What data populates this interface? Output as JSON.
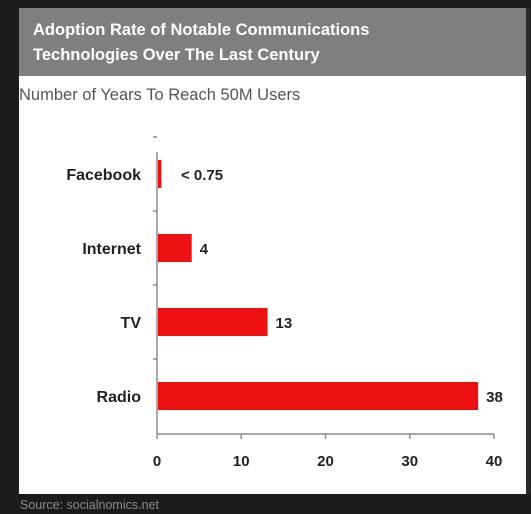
{
  "header": {
    "title_line1": "Adoption Rate of Notable Communications",
    "title_line2": "Technologies Over The Last Century",
    "subtitle": "Number of Years To Reach 50M Users"
  },
  "footer": {
    "source": "Source: socialnomics.net"
  },
  "colors": {
    "bar": "#ee1111",
    "title_band": "#7f7f7f",
    "background": "#1c1c1c",
    "panel": "#ffffff"
  },
  "chart_data": {
    "type": "bar",
    "orientation": "horizontal",
    "title": "Adoption Rate of Notable Communications Technologies Over The Last Century",
    "subtitle": "Number of Years To Reach 50M Users",
    "categories": [
      "Facebook",
      "Internet",
      "TV",
      "Radio"
    ],
    "values": [
      0.4,
      4,
      13,
      38
    ],
    "data_labels": [
      "< 0.75",
      "4",
      "13",
      "38"
    ],
    "xlim": [
      0,
      40
    ],
    "xticks": [
      0,
      10,
      20,
      30,
      40
    ],
    "grid": false,
    "legend": "none"
  }
}
